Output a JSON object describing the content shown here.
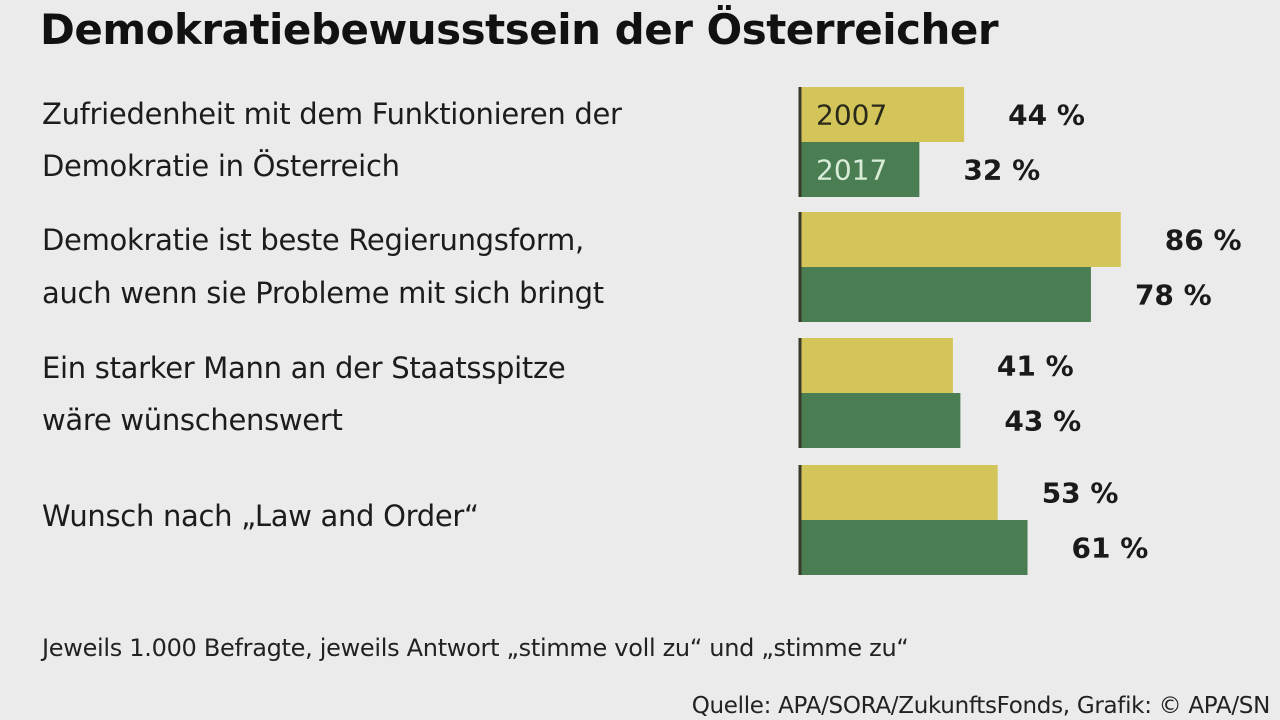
{
  "chart_data": {
    "type": "bar",
    "orientation": "horizontal",
    "title": "Demokratiebewusstsein der Österreicher",
    "categories": [
      [
        "Zufriedenheit mit dem Funktionieren der",
        "Demokratie in Österreich"
      ],
      [
        "Demokratie ist beste Regierungsform,",
        "auch wenn sie Probleme mit sich bringt"
      ],
      [
        "Ein starker Mann an der Staatsspitze",
        "wäre wünschenswert"
      ],
      [
        "Wunsch nach „Law and Order“"
      ]
    ],
    "series": [
      {
        "name": "2007",
        "color": "#d4c55a",
        "label_color": "#2a2a1a",
        "values": [
          44,
          86,
          41,
          53
        ]
      },
      {
        "name": "2017",
        "color": "#4a7d52",
        "label_color": "#d8ecd8",
        "values": [
          32,
          78,
          43,
          61
        ]
      }
    ],
    "value_suffix": " %",
    "xlabel": "",
    "ylabel": "",
    "xlim": [
      0,
      100
    ],
    "grid": false,
    "legend": "inline-in-first-bars",
    "note": "Jeweils 1.000 Befragte, jeweils Antwort „stimme voll zu“ und „stimme zu“",
    "source": "Quelle: APA/SORA/ZukunftsFonds, Grafik: © APA/SN"
  },
  "colors": {
    "background": "#ebebeb",
    "axis": "#3a3a2a",
    "value_text": "#1a1a1a"
  }
}
